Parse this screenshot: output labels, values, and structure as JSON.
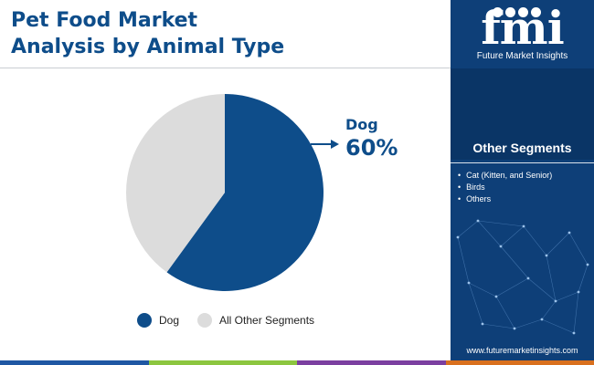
{
  "title": {
    "line1": "Pet Food Market",
    "line2": "Analysis by Animal Type"
  },
  "colors": {
    "primary": "#0e4d8a",
    "other": "#dcdcdc",
    "panel": "#0e3f78"
  },
  "chart_data": {
    "type": "pie",
    "categories": [
      "Dog",
      "All Other Segments"
    ],
    "values": [
      60,
      40
    ],
    "colors": [
      "#0e4d8a",
      "#dcdcdc"
    ],
    "callout": {
      "label": "Dog",
      "value": "60%"
    },
    "legend_position": "bottom"
  },
  "legend": [
    {
      "label": "Dog",
      "color": "#0e4d8a"
    },
    {
      "label": "All Other Segments",
      "color": "#dcdcdc"
    }
  ],
  "panel": {
    "logo_text": "fmi",
    "logo_tagline": "Future Market Insights",
    "segments_heading": "Other Segments",
    "segments": [
      "Cat (Kitten, and Senior)",
      "Birds",
      "Others"
    ],
    "website": "www.futuremarketinsights.com"
  },
  "bottom_bar_colors": [
    "#1f57a3",
    "#8cc63f",
    "#7b3fa0",
    "#d9701e"
  ]
}
